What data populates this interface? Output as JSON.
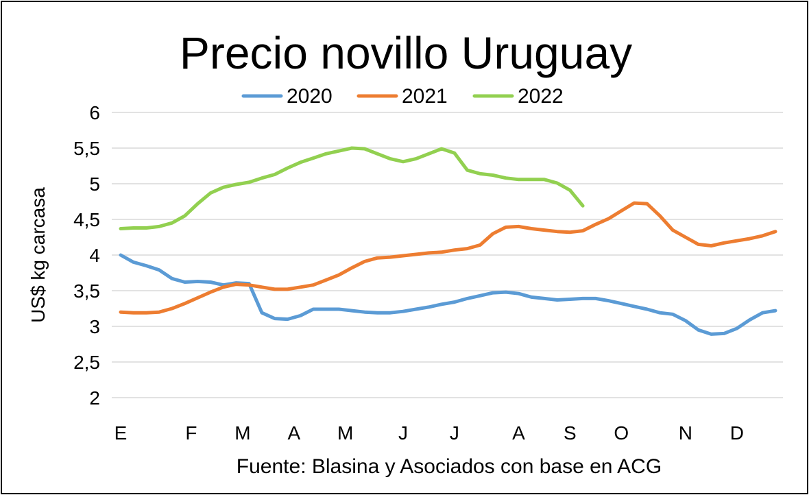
{
  "chart_data": {
    "type": "line",
    "title": "Precio novillo Uruguay",
    "ylabel": "US$ kg carcasa",
    "xlabel": "",
    "source": "Fuente: Blasina y Asociados con base en ACG",
    "ylim": [
      2,
      6
    ],
    "xlim": [
      1,
      52
    ],
    "y_ticks": [
      "2",
      "2,5",
      "3",
      "3,5",
      "4",
      "4,5",
      "5",
      "5,5",
      "6"
    ],
    "y_tick_values": [
      2,
      2.5,
      3,
      3.5,
      4,
      4.5,
      5,
      5.5,
      6
    ],
    "x_ticks": [
      "E",
      "F",
      "M",
      "A",
      "M",
      "J",
      "J",
      "A",
      "S",
      "O",
      "N",
      "D"
    ],
    "x_tick_weeks": [
      1,
      6.5,
      10.5,
      14.5,
      18.5,
      23,
      27,
      32,
      36,
      40,
      45,
      49
    ],
    "grid": true,
    "legend_position": "top",
    "x_unit_note": "week of year",
    "series": [
      {
        "name": "2020",
        "color": "#5b9bd5",
        "x": [
          1,
          2,
          3,
          4,
          5,
          6,
          7,
          8,
          9,
          10,
          11,
          12,
          13,
          14,
          15,
          16,
          17,
          18,
          19,
          20,
          21,
          22,
          23,
          24,
          25,
          26,
          27,
          28,
          29,
          30,
          31,
          32,
          33,
          34,
          35,
          36,
          37,
          38,
          39,
          40,
          41,
          42,
          43,
          44,
          45,
          46,
          47,
          48,
          49,
          50,
          51,
          52
        ],
        "values": [
          4.0,
          3.9,
          3.85,
          3.79,
          3.67,
          3.62,
          3.63,
          3.62,
          3.58,
          3.61,
          3.6,
          3.19,
          3.11,
          3.1,
          3.15,
          3.24,
          3.24,
          3.24,
          3.22,
          3.2,
          3.19,
          3.19,
          3.21,
          3.24,
          3.27,
          3.31,
          3.34,
          3.39,
          3.43,
          3.47,
          3.48,
          3.46,
          3.41,
          3.39,
          3.37,
          3.38,
          3.39,
          3.39,
          3.36,
          3.32,
          3.28,
          3.24,
          3.19,
          3.17,
          3.08,
          2.95,
          2.89,
          2.9,
          2.97,
          3.09,
          3.19,
          3.22
        ]
      },
      {
        "name": "2021",
        "color": "#ed7d31",
        "x": [
          1,
          2,
          3,
          4,
          5,
          6,
          7,
          8,
          9,
          10,
          11,
          12,
          13,
          14,
          15,
          16,
          17,
          18,
          19,
          20,
          21,
          22,
          23,
          24,
          25,
          26,
          27,
          28,
          29,
          30,
          31,
          32,
          33,
          34,
          35,
          36,
          37,
          38,
          39,
          40,
          41,
          42,
          43,
          44,
          45,
          46,
          47,
          48,
          49,
          50,
          51,
          52
        ],
        "values": [
          3.2,
          3.19,
          3.19,
          3.2,
          3.25,
          3.32,
          3.4,
          3.48,
          3.55,
          3.59,
          3.58,
          3.55,
          3.52,
          3.52,
          3.55,
          3.58,
          3.65,
          3.72,
          3.82,
          3.91,
          3.96,
          3.97,
          3.99,
          4.01,
          4.03,
          4.04,
          4.07,
          4.09,
          4.14,
          4.3,
          4.39,
          4.4,
          4.37,
          4.35,
          4.33,
          4.32,
          4.34,
          4.43,
          4.51,
          4.62,
          4.73,
          4.72,
          4.55,
          4.35,
          4.25,
          4.15,
          4.13,
          4.17,
          4.2,
          4.23,
          4.27,
          4.33
        ]
      },
      {
        "name": "2022",
        "color": "#92d050",
        "x": [
          1,
          2,
          3,
          4,
          5,
          6,
          7,
          8,
          9,
          10,
          11,
          12,
          13,
          14,
          15,
          16,
          17,
          18,
          19,
          20,
          21,
          22,
          23,
          24,
          25,
          26,
          27,
          28,
          29,
          30,
          31,
          32,
          33,
          34,
          35,
          36,
          37
        ],
        "values": [
          4.37,
          4.38,
          4.38,
          4.4,
          4.45,
          4.55,
          4.72,
          4.87,
          4.95,
          4.99,
          5.02,
          5.08,
          5.13,
          5.22,
          5.3,
          5.36,
          5.42,
          5.46,
          5.5,
          5.49,
          5.42,
          5.35,
          5.31,
          5.35,
          5.42,
          5.49,
          5.43,
          5.19,
          5.14,
          5.12,
          5.08,
          5.06,
          5.06,
          5.06,
          5.01,
          4.91,
          4.69
        ]
      }
    ]
  }
}
